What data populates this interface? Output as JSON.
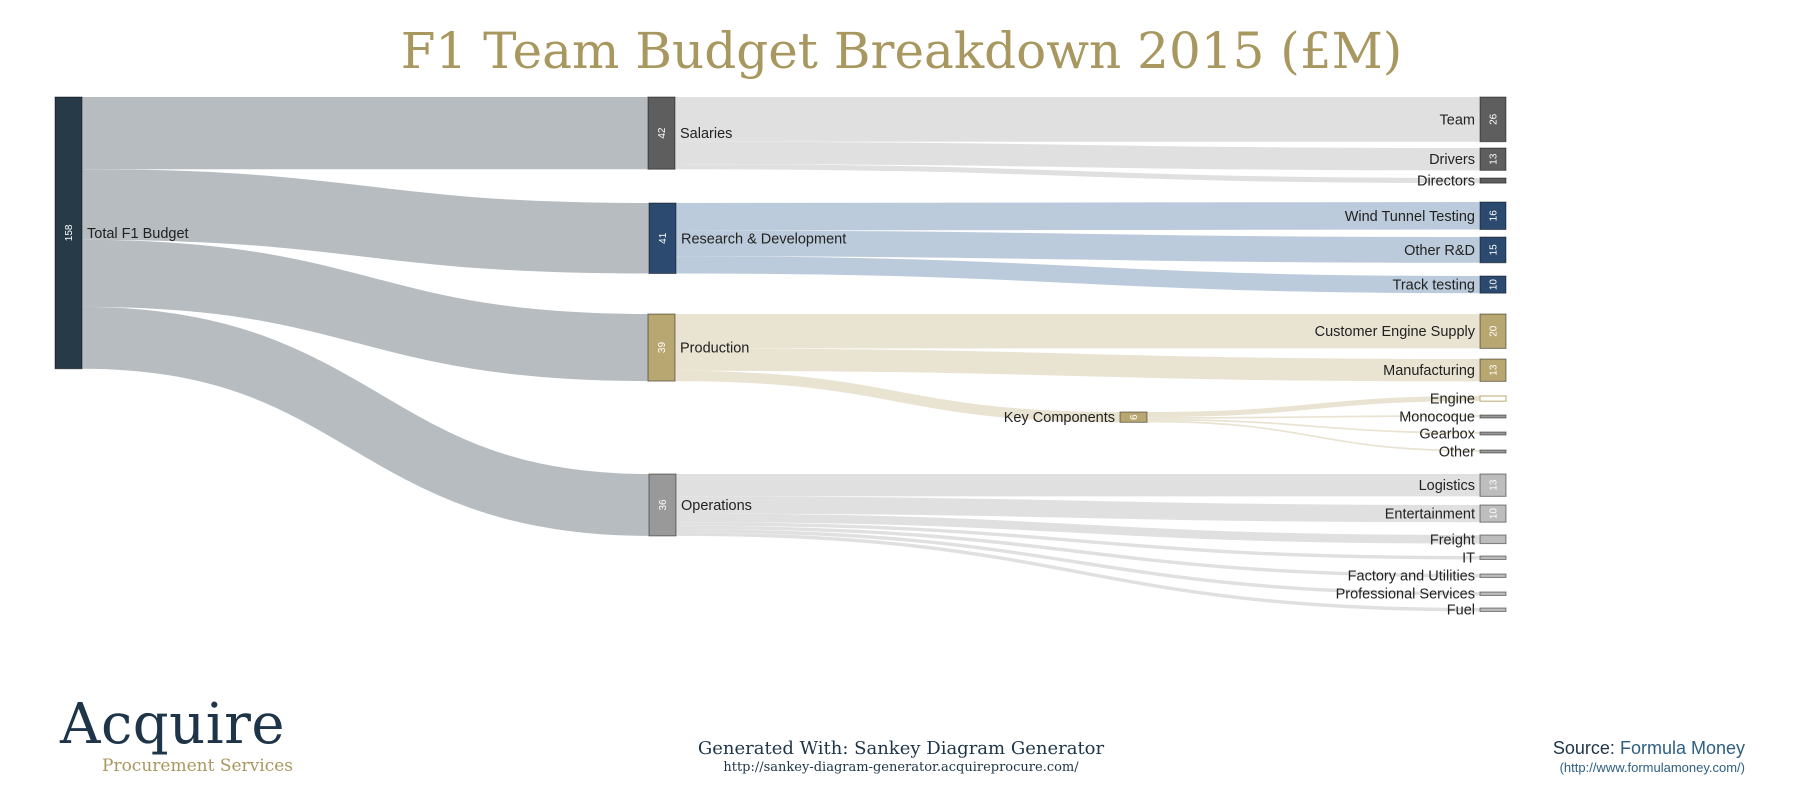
{
  "title": "F1 Team Budget Breakdown 2015 (£M)",
  "colors": {
    "title": "#A8975F",
    "link_default": "#B6BCC0",
    "node_total": "#263A48",
    "node_salaries": "#5E5E5E",
    "node_rnd": "#2C4A70",
    "node_production": "#B9A772",
    "node_operations": "#999999",
    "link_salaries": "#E0E0E0",
    "link_rnd": "#BCCBDB",
    "link_production": "#E9E3D2",
    "link_operations": "#E0E0E0"
  },
  "chart_data": {
    "type": "sankey",
    "units": "£M",
    "nodes": [
      {
        "id": "total",
        "label": "Total F1 Budget",
        "value": 158
      },
      {
        "id": "salaries",
        "label": "Salaries",
        "value": 42
      },
      {
        "id": "rnd",
        "label": "Research & Development",
        "value": 41
      },
      {
        "id": "production",
        "label": "Production",
        "value": 39
      },
      {
        "id": "operations",
        "label": "Operations",
        "value": 36
      },
      {
        "id": "key_components",
        "label": "Key Components",
        "value": 6
      },
      {
        "id": "team",
        "label": "Team",
        "value": 26
      },
      {
        "id": "drivers",
        "label": "Drivers",
        "value": 13
      },
      {
        "id": "directors",
        "label": "Directors",
        "value": 3
      },
      {
        "id": "wind_tunnel",
        "label": "Wind Tunnel Testing",
        "value": 16
      },
      {
        "id": "other_rnd",
        "label": "Other R&D",
        "value": 15
      },
      {
        "id": "track_testing",
        "label": "Track testing",
        "value": 10
      },
      {
        "id": "customer_engine",
        "label": "Customer Engine Supply",
        "value": 20
      },
      {
        "id": "manufacturing",
        "label": "Manufacturing",
        "value": 13
      },
      {
        "id": "engine",
        "label": "Engine",
        "value": 3
      },
      {
        "id": "monocoque",
        "label": "Monocoque",
        "value": 1
      },
      {
        "id": "gearbox",
        "label": "Gearbox",
        "value": 1
      },
      {
        "id": "other_kc",
        "label": "Other",
        "value": 1
      },
      {
        "id": "logistics",
        "label": "Logistics",
        "value": 13
      },
      {
        "id": "entertainment",
        "label": "Entertainment",
        "value": 10
      },
      {
        "id": "freight",
        "label": "Freight",
        "value": 5
      },
      {
        "id": "it",
        "label": "IT",
        "value": 2
      },
      {
        "id": "factory",
        "label": "Factory and Utilities",
        "value": 2
      },
      {
        "id": "professional",
        "label": "Professional Services",
        "value": 2
      },
      {
        "id": "fuel",
        "label": "Fuel",
        "value": 2
      }
    ],
    "links": [
      {
        "source": "total",
        "target": "salaries",
        "value": 42
      },
      {
        "source": "total",
        "target": "rnd",
        "value": 41
      },
      {
        "source": "total",
        "target": "production",
        "value": 39
      },
      {
        "source": "total",
        "target": "operations",
        "value": 36
      },
      {
        "source": "salaries",
        "target": "team",
        "value": 26
      },
      {
        "source": "salaries",
        "target": "drivers",
        "value": 13
      },
      {
        "source": "salaries",
        "target": "directors",
        "value": 3
      },
      {
        "source": "rnd",
        "target": "wind_tunnel",
        "value": 16
      },
      {
        "source": "rnd",
        "target": "other_rnd",
        "value": 15
      },
      {
        "source": "rnd",
        "target": "track_testing",
        "value": 10
      },
      {
        "source": "production",
        "target": "customer_engine",
        "value": 20
      },
      {
        "source": "production",
        "target": "manufacturing",
        "value": 13
      },
      {
        "source": "production",
        "target": "key_components",
        "value": 6
      },
      {
        "source": "key_components",
        "target": "engine",
        "value": 3
      },
      {
        "source": "key_components",
        "target": "monocoque",
        "value": 1
      },
      {
        "source": "key_components",
        "target": "gearbox",
        "value": 1
      },
      {
        "source": "key_components",
        "target": "other_kc",
        "value": 1
      },
      {
        "source": "operations",
        "target": "logistics",
        "value": 13
      },
      {
        "source": "operations",
        "target": "entertainment",
        "value": 10
      },
      {
        "source": "operations",
        "target": "freight",
        "value": 5
      },
      {
        "source": "operations",
        "target": "it",
        "value": 2
      },
      {
        "source": "operations",
        "target": "factory",
        "value": 2
      },
      {
        "source": "operations",
        "target": "professional",
        "value": 2
      },
      {
        "source": "operations",
        "target": "fuel",
        "value": 2
      }
    ]
  },
  "logo": {
    "word": "Acquire",
    "subtitle": "Procurement Services"
  },
  "footer": {
    "generated_line": "Generated With: Sankey Diagram Generator",
    "generated_url": "http://sankey-diagram-generator.acquireprocure.com/",
    "source_prefix": "Source:",
    "source_name": "Formula Money",
    "source_url": "(http://www.formulamoney.com/)"
  }
}
